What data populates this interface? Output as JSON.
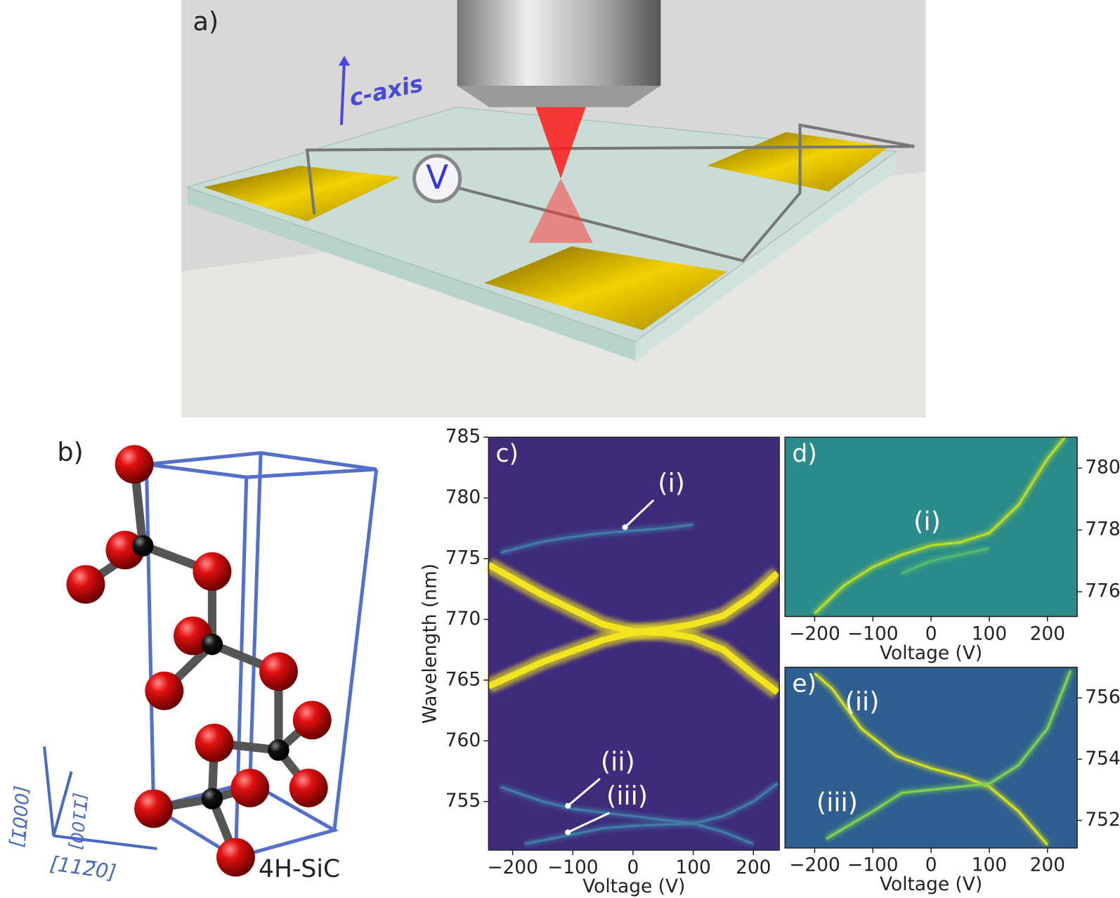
{
  "panels": {
    "a": {
      "label": "a)",
      "axis_label": "c-axis",
      "meter_label": "V"
    },
    "b": {
      "label": "b)",
      "crystal": "4H-SiC",
      "directions": [
        "[000̅1̅]",
        "[1̅100]",
        "[112̅0]"
      ]
    }
  },
  "chart_data": [
    {
      "type": "heatmap",
      "panel_label": "c)",
      "x_label": "Voltage (V)",
      "y_label": "Wavelength (nm)",
      "y_axis_side": "left",
      "background": "#3e2b7c",
      "xlim": [
        -240,
        243
      ],
      "ylim": [
        751,
        785
      ],
      "xticks": [
        {
          "value": -200,
          "label": "−200"
        },
        {
          "value": -100,
          "label": "−100"
        },
        0,
        100,
        200
      ],
      "yticks": [
        755,
        760,
        765,
        770,
        775,
        780,
        785
      ],
      "annotations": [
        "(i)",
        "(ii)",
        "(iii)"
      ],
      "series": [
        {
          "color": "#f2e51f",
          "x": [
            -240,
            -150,
            -50,
            0,
            50,
            100,
            150,
            200,
            240
          ],
          "values": [
            774.5,
            772,
            769.6,
            769,
            768.9,
            768.5,
            767.5,
            765.5,
            764
          ]
        },
        {
          "color": "#f2e51f",
          "x": [
            -240,
            -150,
            -50,
            0,
            50,
            100,
            150,
            200,
            240
          ],
          "values": [
            764.5,
            766.5,
            768.3,
            768.9,
            769.2,
            769.6,
            770.3,
            772,
            773.8
          ]
        },
        {
          "color": "#3f7fa6",
          "x": [
            -220,
            -150,
            -100,
            -50,
            0,
            50,
            100
          ],
          "values": [
            775.5,
            776.4,
            776.8,
            777.1,
            777.3,
            777.5,
            777.8
          ]
        },
        {
          "color": "#3f7fa6",
          "x": [
            -220,
            -150,
            -100,
            -50,
            0,
            50,
            100,
            150,
            200
          ],
          "values": [
            756.2,
            755,
            754.4,
            754.1,
            753.8,
            753.5,
            753.2,
            752.5,
            751.5
          ]
        },
        {
          "color": "#3f7fa6",
          "x": [
            -180,
            -100,
            -50,
            0,
            50,
            100,
            150,
            200,
            240
          ],
          "values": [
            751.5,
            752.3,
            752.8,
            753,
            753.1,
            753.2,
            753.8,
            755,
            756.5
          ]
        }
      ]
    },
    {
      "type": "heatmap",
      "panel_label": "d)",
      "x_label": "Voltage (V)",
      "y_axis_side": "right",
      "background": "#2a8b8b",
      "xlim": [
        -251,
        251
      ],
      "ylim": [
        775.2,
        781
      ],
      "xticks": [
        {
          "value": -200,
          "label": "−200"
        },
        {
          "value": -100,
          "label": "−100"
        },
        0,
        100,
        200
      ],
      "yticks": [
        776,
        778,
        780
      ],
      "annotations": [
        "(i)"
      ],
      "series": [
        {
          "color": "#b9de28",
          "x": [
            -200,
            -150,
            -100,
            -50,
            0,
            50,
            100,
            150,
            200,
            230
          ],
          "values": [
            775.3,
            776.2,
            776.8,
            777.2,
            777.5,
            777.6,
            777.9,
            778.8,
            780.3,
            781
          ]
        },
        {
          "color": "#55b870",
          "x": [
            -50,
            0,
            50,
            100
          ],
          "values": [
            776.6,
            777,
            777.2,
            777.4
          ]
        }
      ]
    },
    {
      "type": "heatmap",
      "panel_label": "e)",
      "x_label": "Voltage (V)",
      "y_axis_side": "right",
      "background": "#2f5f90",
      "xlim": [
        -251,
        251
      ],
      "ylim": [
        751.1,
        757
      ],
      "xticks": [
        {
          "value": -200,
          "label": "−200"
        },
        {
          "value": -100,
          "label": "−100"
        },
        0,
        100,
        200
      ],
      "yticks": [
        752,
        754,
        756
      ],
      "annotations": [
        "(ii)",
        "(iii)"
      ],
      "series": [
        {
          "color": "#d8e21f",
          "x": [
            -200,
            -170,
            -120,
            -60,
            0,
            60,
            100,
            150,
            200
          ],
          "values": [
            756.8,
            756.3,
            755,
            754.1,
            753.7,
            753.4,
            753.1,
            752.3,
            751.2
          ]
        },
        {
          "color": "#7fd34e",
          "x": [
            -180,
            -100,
            -50,
            0,
            50,
            100,
            150,
            200,
            240
          ],
          "values": [
            751.4,
            752.3,
            752.9,
            753,
            753.1,
            753.2,
            753.8,
            755,
            756.9
          ]
        }
      ]
    }
  ]
}
